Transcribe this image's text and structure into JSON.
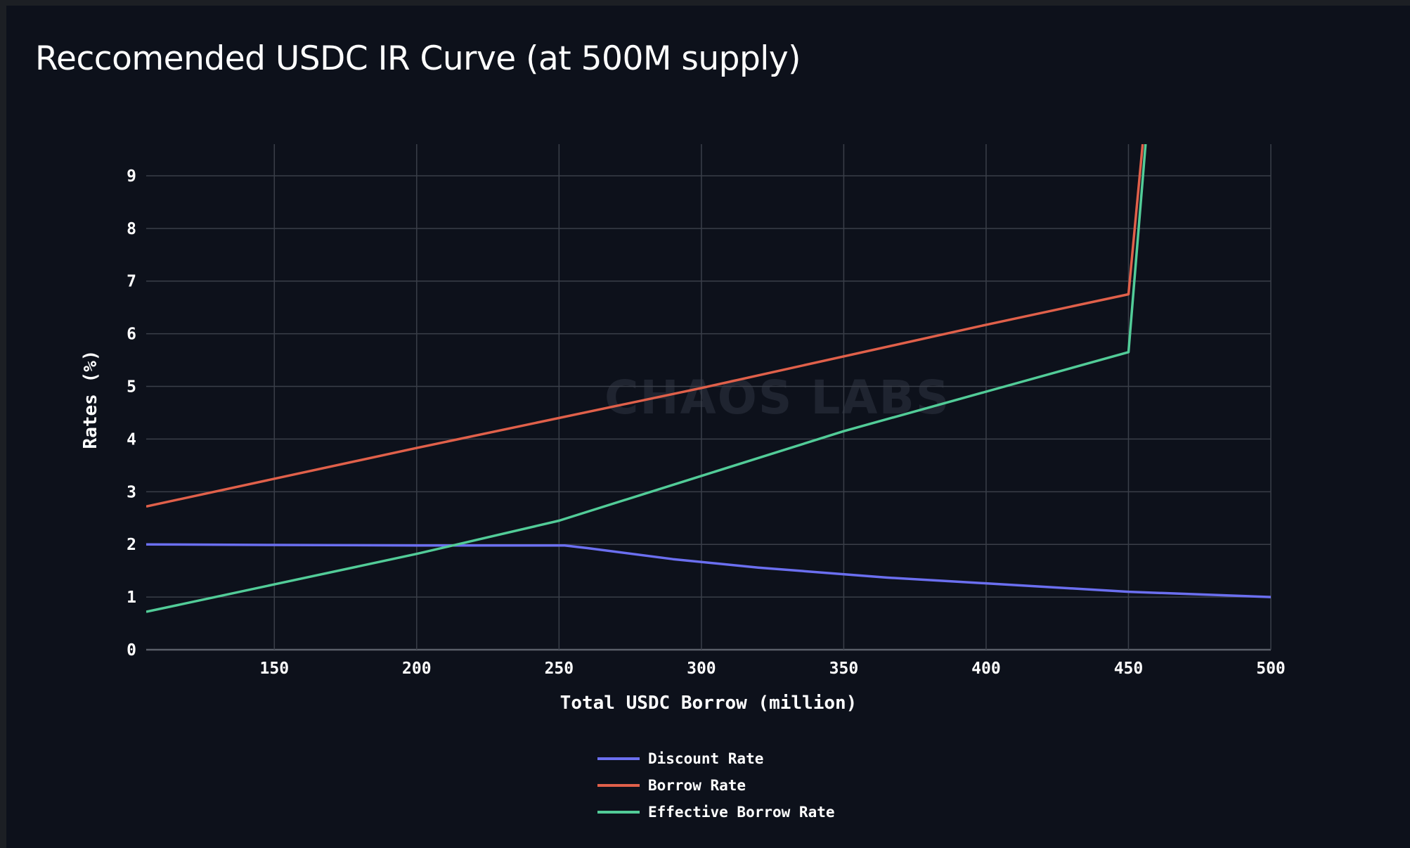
{
  "chart_data": {
    "type": "line",
    "title": "Reccomended USDC IR Curve (at 500M supply)",
    "xlabel": "Total USDC Borrow (million)",
    "ylabel": "Rates (%)",
    "xlim": [
      105,
      500
    ],
    "ylim": [
      0,
      9.6
    ],
    "x_ticks": [
      150,
      200,
      250,
      300,
      350,
      400,
      450,
      500
    ],
    "y_ticks": [
      0,
      1,
      2,
      3,
      4,
      5,
      6,
      7,
      8,
      9
    ],
    "grid": true,
    "legend_position": "bottom-center",
    "watermark": "CHAOS LABS",
    "series": [
      {
        "name": "Discount Rate",
        "color": "#6b6ff0",
        "x": [
          105,
          150,
          200,
          252,
          260,
          290,
          320,
          365,
          400,
          450,
          500
        ],
        "y": [
          2.0,
          1.99,
          1.98,
          1.98,
          1.93,
          1.72,
          1.56,
          1.37,
          1.26,
          1.1,
          1.0
        ]
      },
      {
        "name": "Borrow Rate",
        "color": "#e0604a",
        "x": [
          105,
          200,
          300,
          400,
          450,
          455
        ],
        "y": [
          2.72,
          3.83,
          4.97,
          6.17,
          6.75,
          9.6
        ]
      },
      {
        "name": "Effective Borrow Rate",
        "color": "#52cc98",
        "x": [
          105,
          150,
          200,
          250,
          300,
          350,
          400,
          450,
          456
        ],
        "y": [
          0.72,
          1.24,
          1.82,
          2.45,
          3.3,
          4.15,
          4.9,
          5.65,
          9.6
        ]
      }
    ]
  }
}
